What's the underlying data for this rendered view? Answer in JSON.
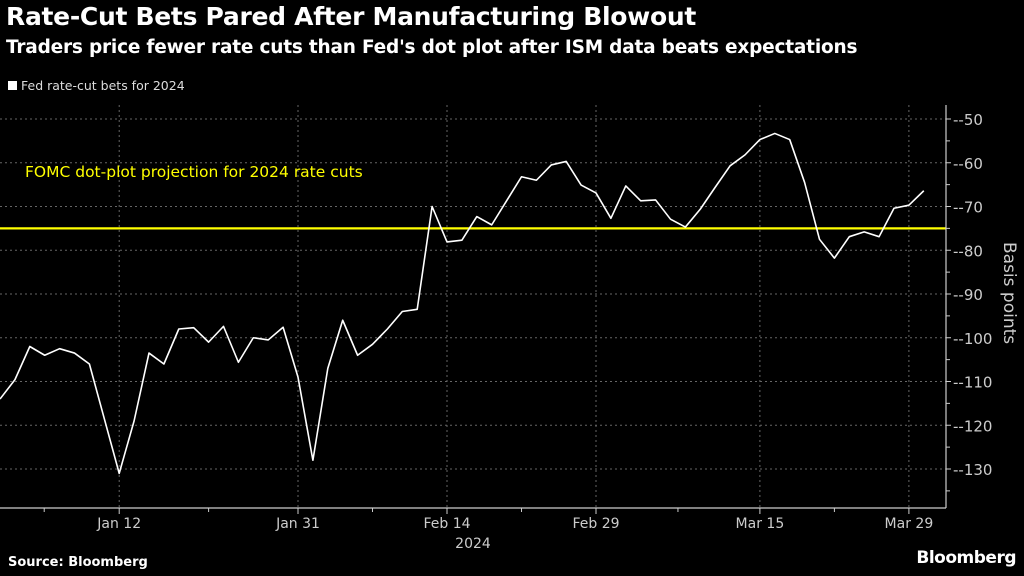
{
  "title": "Rate-Cut Bets Pared After Manufacturing Blowout",
  "subtitle": "Traders price fewer rate cuts than Fed's dot plot after ISM data beats expectations",
  "source": "Source: Bloomberg",
  "logo": "Bloomberg",
  "colors": {
    "background": "#000000",
    "series": "#ffffff",
    "reference": "#ffff00",
    "grid": "#555555"
  },
  "chart_data": {
    "type": "line",
    "title": "Rate-Cut Bets Pared After Manufacturing Blowout",
    "ylabel": "Basis points",
    "xlabel_year": "2024",
    "ylim": [
      -138,
      -47
    ],
    "yticks": [
      -50,
      -60,
      -70,
      -80,
      -90,
      -100,
      -110,
      -120,
      -130
    ],
    "xticks": [
      {
        "label": "Jan 12",
        "date": "Jan 12"
      },
      {
        "label": "Jan 31",
        "date": "Jan 31"
      },
      {
        "label": "Feb 14",
        "date": "Feb 14"
      },
      {
        "label": "Feb 29",
        "date": "Feb 29"
      },
      {
        "label": "Mar 15",
        "date": "Mar 15"
      },
      {
        "label": "Mar 29",
        "date": "Mar 29"
      }
    ],
    "grid": true,
    "legend_position": "top-left",
    "series": [
      {
        "name": "Fed rate-cut bets for 2024",
        "x": [
          "Jan 2",
          "Jan 3",
          "Jan 4",
          "Jan 5",
          "Jan 8",
          "Jan 9",
          "Jan 10",
          "Jan 11",
          "Jan 12",
          "Jan 16",
          "Jan 17",
          "Jan 18",
          "Jan 19",
          "Jan 22",
          "Jan 23",
          "Jan 24",
          "Jan 25",
          "Jan 26",
          "Jan 29",
          "Jan 30",
          "Jan 31",
          "Feb 1",
          "Feb 2",
          "Feb 5",
          "Feb 6",
          "Feb 7",
          "Feb 8",
          "Feb 9",
          "Feb 12",
          "Feb 13",
          "Feb 14",
          "Feb 15",
          "Feb 16",
          "Feb 20",
          "Feb 21",
          "Feb 22",
          "Feb 23",
          "Feb 26",
          "Feb 27",
          "Feb 28",
          "Feb 29",
          "Mar 1",
          "Mar 4",
          "Mar 5",
          "Mar 6",
          "Mar 7",
          "Mar 8",
          "Mar 11",
          "Mar 12",
          "Mar 13",
          "Mar 14",
          "Mar 15",
          "Mar 18",
          "Mar 19",
          "Mar 20",
          "Mar 21",
          "Mar 22",
          "Mar 25",
          "Mar 26",
          "Mar 27",
          "Mar 28",
          "Mar 29",
          "Apr 1"
        ],
        "values": [
          -114,
          -109.6,
          -102,
          -104,
          -102.5,
          -103.5,
          -106,
          -118.5,
          -131,
          -119,
          -103.5,
          -106,
          -98,
          -97.7,
          -101,
          -97.4,
          -105.6,
          -100,
          -100.5,
          -97.6,
          -109,
          -128,
          -107,
          -96,
          -104,
          -101.5,
          -98,
          -94,
          -93.5,
          -70,
          -78.1,
          -77.7,
          -72.3,
          -74.2,
          -68.7,
          -63.2,
          -64,
          -60.5,
          -59.7,
          -65.1,
          -66.9,
          -72.7,
          -65.3,
          -68.7,
          -68.5,
          -72.9,
          -74.7,
          -70.6,
          -65.6,
          -60.7,
          -58.2,
          -54.7,
          -53.3,
          -54.7,
          -64.5,
          -77.5,
          -81.8,
          -76.9,
          -75.8,
          -76.9,
          -70.4,
          -69.7,
          -66.4
        ]
      }
    ],
    "reference_line": {
      "value": -75,
      "label": "FOMC dot-plot projection for 2024 rate cuts"
    }
  }
}
